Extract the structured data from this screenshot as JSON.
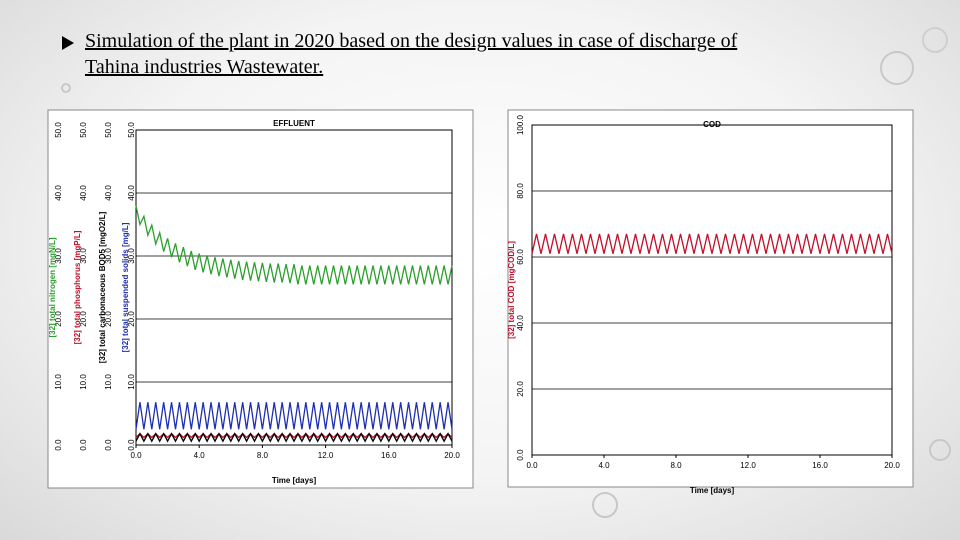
{
  "slide": {
    "lines": [
      "Simulation of the plant in 2020 based on the design values in case of discharge of",
      "Tahina industries Wastewater."
    ]
  },
  "chart_data": [
    {
      "type": "line",
      "title": "EFFLUENT",
      "x_label": "Time [days]",
      "x": [
        0,
        0.25,
        0.5,
        0.75,
        1,
        1.25,
        1.5,
        1.75,
        2,
        2.25,
        2.5,
        2.75,
        3,
        3.25,
        3.5,
        3.75,
        4,
        4.25,
        4.5,
        4.75,
        5,
        5.25,
        5.5,
        5.75,
        6,
        6.25,
        6.5,
        6.75,
        7,
        7.25,
        7.5,
        7.75,
        8,
        8.25,
        8.5,
        8.75,
        9,
        9.25,
        9.5,
        9.75,
        10,
        10.25,
        10.5,
        10.75,
        11,
        11.25,
        11.5,
        11.75,
        12,
        12.25,
        12.5,
        12.75,
        13,
        13.25,
        13.5,
        13.75,
        14,
        14.25,
        14.5,
        14.75,
        15,
        15.25,
        15.5,
        15.75,
        16,
        16.25,
        16.5,
        16.75,
        17,
        17.25,
        17.5,
        17.75,
        18,
        18.25,
        18.5,
        18.75,
        19,
        19.25,
        19.5,
        19.75,
        20
      ],
      "xlim": [
        0,
        20
      ],
      "xticks": [
        {
          "value": 0,
          "label": "0.0"
        },
        {
          "value": 4,
          "label": "4.0"
        },
        {
          "value": 8,
          "label": "8.0"
        },
        {
          "value": 12,
          "label": "12.0"
        },
        {
          "value": 16,
          "label": "16.0"
        },
        {
          "value": 20,
          "label": "20.0"
        }
      ],
      "ylim": [
        0,
        50
      ],
      "yticks": [
        {
          "value": 0,
          "label": "0.0"
        },
        {
          "value": 10,
          "label": "10.0"
        },
        {
          "value": 20,
          "label": "20.0"
        },
        {
          "value": 30,
          "label": "30.0"
        },
        {
          "value": 40,
          "label": "40.0"
        },
        {
          "value": 50,
          "label": "50.0"
        }
      ],
      "grid": true,
      "series": [
        {
          "name": "[32] total nitrogen [mgN/L]",
          "color": "#2ca02c",
          "values": [
            38,
            35,
            36.3,
            33.3,
            34.9,
            31.9,
            33.7,
            30.7,
            32.8,
            29.8,
            32,
            29,
            31.4,
            28.4,
            30.8,
            27.8,
            30.4,
            27.4,
            30.1,
            27.1,
            29.8,
            26.8,
            29.6,
            26.6,
            29.4,
            26.4,
            29.2,
            26.2,
            29.1,
            26.1,
            29,
            26,
            28.9,
            25.9,
            28.8,
            25.8,
            28.8,
            25.8,
            28.7,
            25.7,
            28.7,
            25.5,
            28.5,
            25.5,
            28.5,
            25.5,
            28.5,
            25.5,
            28.5,
            25.5,
            28.5,
            25.5,
            28.5,
            25.5,
            28.5,
            25.5,
            28.5,
            25.5,
            28.5,
            25.5,
            28.5,
            25.5,
            28.5,
            25.5,
            28.5,
            25.5,
            28.5,
            25.5,
            28.5,
            25.5,
            28.5,
            25.5,
            28.5,
            25.5,
            28.5,
            25.5,
            28.5,
            25.5,
            28.5,
            25.5,
            28.5
          ]
        },
        {
          "name": "[32] total phosphorus [mgP/L]",
          "color": "#c0102a",
          "values": [
            1.2,
            1.8,
            1.2,
            1.8,
            1.2,
            1.8,
            1.2,
            1.8,
            1.2,
            1.8,
            1.2,
            1.8,
            1.2,
            1.8,
            1.2,
            1.8,
            1.2,
            1.8,
            1.2,
            1.8,
            1.2,
            1.8,
            1.2,
            1.8,
            1.2,
            1.8,
            1.2,
            1.8,
            1.2,
            1.8,
            1.2,
            1.8,
            1.2,
            1.8,
            1.2,
            1.8,
            1.2,
            1.8,
            1.2,
            1.8,
            1.2,
            1.8,
            1.2,
            1.8,
            1.2,
            1.8,
            1.2,
            1.8,
            1.2,
            1.8,
            1.2,
            1.8,
            1.2,
            1.8,
            1.2,
            1.8,
            1.2,
            1.8,
            1.2,
            1.8,
            1.2,
            1.8,
            1.2,
            1.8,
            1.2,
            1.8,
            1.2,
            1.8,
            1.2,
            1.8,
            1.2,
            1.8,
            1.2,
            1.8,
            1.2,
            1.8,
            1.2,
            1.8,
            1.2,
            1.8,
            1.2
          ]
        },
        {
          "name": "[32] total carbonaceous BOD5 [mgO2/L]",
          "color": "#000000",
          "values": [
            0.6,
            1.8,
            0.6,
            1.8,
            0.6,
            1.8,
            0.6,
            1.8,
            0.6,
            1.8,
            0.6,
            1.8,
            0.6,
            1.8,
            0.6,
            1.8,
            0.6,
            1.8,
            0.6,
            1.8,
            0.6,
            1.8,
            0.6,
            1.8,
            0.6,
            1.8,
            0.6,
            1.8,
            0.6,
            1.8,
            0.6,
            1.8,
            0.6,
            1.8,
            0.6,
            1.8,
            0.6,
            1.8,
            0.6,
            1.8,
            0.6,
            1.8,
            0.6,
            1.8,
            0.6,
            1.8,
            0.6,
            1.8,
            0.6,
            1.8,
            0.6,
            1.8,
            0.6,
            1.8,
            0.6,
            1.8,
            0.6,
            1.8,
            0.6,
            1.8,
            0.6,
            1.8,
            0.6,
            1.8,
            0.6,
            1.8,
            0.6,
            1.8,
            0.6,
            1.8,
            0.6,
            1.8,
            0.6,
            1.8,
            0.6,
            1.8,
            0.6,
            1.8,
            0.6,
            1.8,
            0.6
          ]
        },
        {
          "name": "[32] total suspended solids [mg/L]",
          "color": "#1f2fb0",
          "values": [
            2.5,
            6.8,
            2.5,
            6.8,
            2.5,
            6.8,
            2.5,
            6.8,
            2.5,
            6.8,
            2.5,
            6.8,
            2.5,
            6.8,
            2.5,
            6.8,
            2.5,
            6.8,
            2.5,
            6.8,
            2.5,
            6.8,
            2.5,
            6.8,
            2.5,
            6.8,
            2.5,
            6.8,
            2.5,
            6.8,
            2.5,
            6.8,
            2.5,
            6.8,
            2.5,
            6.8,
            2.5,
            6.8,
            2.5,
            6.8,
            2.5,
            6.8,
            2.5,
            6.8,
            2.5,
            6.8,
            2.5,
            6.8,
            2.5,
            6.8,
            2.5,
            6.8,
            2.5,
            6.8,
            2.5,
            6.8,
            2.5,
            6.8,
            2.5,
            6.8,
            2.5,
            6.8,
            2.5,
            6.8,
            2.5,
            6.8,
            2.5,
            6.8,
            2.5,
            6.8,
            2.5,
            6.8,
            2.5,
            6.8,
            2.5,
            6.8,
            2.5,
            6.8,
            2.5,
            6.8,
            2.5
          ]
        }
      ]
    },
    {
      "type": "line",
      "title": "COD",
      "x_label": "Time [days]",
      "x": [
        0,
        0.25,
        0.5,
        0.75,
        1,
        1.25,
        1.5,
        1.75,
        2,
        2.25,
        2.5,
        2.75,
        3,
        3.25,
        3.5,
        3.75,
        4,
        4.25,
        4.5,
        4.75,
        5,
        5.25,
        5.5,
        5.75,
        6,
        6.25,
        6.5,
        6.75,
        7,
        7.25,
        7.5,
        7.75,
        8,
        8.25,
        8.5,
        8.75,
        9,
        9.25,
        9.5,
        9.75,
        10,
        10.25,
        10.5,
        10.75,
        11,
        11.25,
        11.5,
        11.75,
        12,
        12.25,
        12.5,
        12.75,
        13,
        13.25,
        13.5,
        13.75,
        14,
        14.25,
        14.5,
        14.75,
        15,
        15.25,
        15.5,
        15.75,
        16,
        16.25,
        16.5,
        16.75,
        17,
        17.25,
        17.5,
        17.75,
        18,
        18.25,
        18.5,
        18.75,
        19,
        19.25,
        19.5,
        19.75,
        20
      ],
      "xlim": [
        0,
        20
      ],
      "xticks": [
        {
          "value": 0,
          "label": "0.0"
        },
        {
          "value": 4,
          "label": "4.0"
        },
        {
          "value": 8,
          "label": "8.0"
        },
        {
          "value": 12,
          "label": "12.0"
        },
        {
          "value": 16,
          "label": "16.0"
        },
        {
          "value": 20,
          "label": "20.0"
        }
      ],
      "ylim": [
        0,
        100
      ],
      "yticks": [
        {
          "value": 0,
          "label": "0.0"
        },
        {
          "value": 20,
          "label": "20.0"
        },
        {
          "value": 40,
          "label": "40.0"
        },
        {
          "value": 60,
          "label": "60.0"
        },
        {
          "value": 80,
          "label": "80.0"
        },
        {
          "value": 100,
          "label": "100.0"
        }
      ],
      "grid": true,
      "series": [
        {
          "name": "[32] total COD [mgCOD/L]",
          "color": "#c0102a",
          "values": [
            61,
            67,
            61,
            67,
            61,
            67,
            61,
            67,
            61,
            67,
            61,
            67,
            61,
            67,
            61,
            67,
            61,
            67,
            61,
            67,
            61,
            67,
            61,
            67,
            61,
            67,
            61,
            67,
            61,
            67,
            61,
            67,
            61,
            67,
            61,
            67,
            61,
            67,
            61,
            67,
            61,
            67,
            61,
            67,
            61,
            67,
            61,
            67,
            61,
            67,
            61,
            67,
            61,
            67,
            61,
            67,
            61,
            67,
            61,
            67,
            61,
            67,
            61,
            67,
            61,
            67,
            61,
            67,
            61,
            67,
            61,
            67,
            61,
            67,
            61,
            67,
            61,
            67,
            61,
            67,
            61
          ]
        }
      ]
    }
  ]
}
